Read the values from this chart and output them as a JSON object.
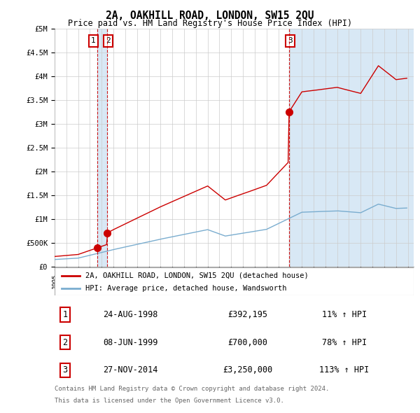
{
  "title": "2A, OAKHILL ROAD, LONDON, SW15 2QU",
  "subtitle": "Price paid vs. HM Land Registry's House Price Index (HPI)",
  "ylabel_ticks": [
    "£0",
    "£500K",
    "£1M",
    "£1.5M",
    "£2M",
    "£2.5M",
    "£3M",
    "£3.5M",
    "£4M",
    "£4.5M",
    "£5M"
  ],
  "ytick_values": [
    0,
    500000,
    1000000,
    1500000,
    2000000,
    2500000,
    3000000,
    3500000,
    4000000,
    4500000,
    5000000
  ],
  "ymax": 5000000,
  "xmin": 1995.0,
  "xmax": 2025.5,
  "s1_year": 1998.646,
  "s1_price": 392195,
  "s2_year": 1999.438,
  "s2_price": 700000,
  "s3_year": 2014.904,
  "s3_price": 3250000,
  "sale_labels": [
    "1",
    "2",
    "3"
  ],
  "legend_line1": "2A, OAKHILL ROAD, LONDON, SW15 2QU (detached house)",
  "legend_line2": "HPI: Average price, detached house, Wandsworth",
  "table_data": [
    [
      "1",
      "24-AUG-1998",
      "£392,195",
      "11% ↑ HPI"
    ],
    [
      "2",
      "08-JUN-1999",
      "£700,000",
      "78% ↑ HPI"
    ],
    [
      "3",
      "27-NOV-2014",
      "£3,250,000",
      "113% ↑ HPI"
    ]
  ],
  "footnote1": "Contains HM Land Registry data © Crown copyright and database right 2024.",
  "footnote2": "This data is licensed under the Open Government Licence v3.0.",
  "line_color_red": "#cc0000",
  "line_color_blue": "#7aadcf",
  "vline_color": "#cc0000",
  "shade_color": "#d8e8f5",
  "background_color": "#ffffff",
  "grid_color": "#cccccc"
}
